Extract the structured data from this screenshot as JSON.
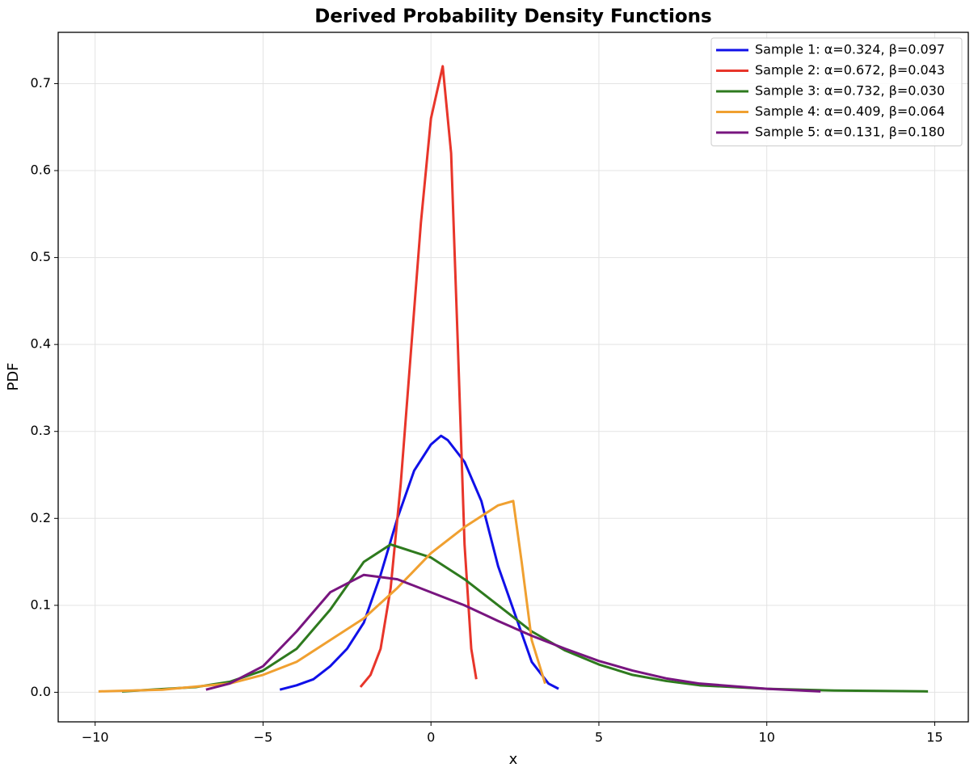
{
  "chart_data": {
    "type": "line",
    "title": "Derived Probability Density Functions",
    "x_label": "x",
    "y_label": "PDF",
    "xlim": [
      -11.1,
      16.0
    ],
    "ylim": [
      -0.034,
      0.759
    ],
    "xticks": [
      {
        "value": -10,
        "label": "−10"
      },
      {
        "value": -5,
        "label": "−5"
      },
      0,
      5,
      10,
      15
    ],
    "yticks": [
      {
        "value": 0,
        "label": "0.0"
      },
      0.1,
      0.2,
      0.3,
      0.4,
      0.5,
      0.6,
      0.7
    ],
    "grid": true,
    "legend": "upper right",
    "series": [
      {
        "name": "Sample 1: α=0.324, β=0.097",
        "color": "#1010e8",
        "x": [
          -4.5,
          -4,
          -3.5,
          -3,
          -2.5,
          -2,
          -1.5,
          -1,
          -0.5,
          0,
          0.3,
          0.5,
          1,
          1.5,
          2,
          2.5,
          3,
          3.5,
          3.8
        ],
        "values": [
          0.003,
          0.008,
          0.015,
          0.03,
          0.05,
          0.08,
          0.135,
          0.2,
          0.255,
          0.285,
          0.295,
          0.29,
          0.265,
          0.22,
          0.145,
          0.09,
          0.035,
          0.01,
          0.004
        ]
      },
      {
        "name": "Sample 2: α=0.672, β=0.043",
        "color": "#e8352a",
        "x": [
          -2.1,
          -1.8,
          -1.5,
          -1.2,
          -0.9,
          -0.6,
          -0.3,
          0,
          0.35,
          0.6,
          0.8,
          1.0,
          1.2,
          1.35
        ],
        "values": [
          0.006,
          0.02,
          0.05,
          0.12,
          0.24,
          0.39,
          0.54,
          0.66,
          0.72,
          0.62,
          0.4,
          0.17,
          0.05,
          0.015
        ]
      },
      {
        "name": "Sample 3: α=0.732, β=0.030",
        "color": "#2e7a1e",
        "x": [
          -9.2,
          -7,
          -6,
          -5,
          -4,
          -3,
          -2,
          -1.2,
          0,
          1,
          2,
          3,
          4,
          5,
          6,
          7,
          8,
          10,
          12,
          14.8
        ],
        "values": [
          0.001,
          0.006,
          0.012,
          0.025,
          0.05,
          0.095,
          0.15,
          0.17,
          0.155,
          0.13,
          0.1,
          0.07,
          0.048,
          0.032,
          0.02,
          0.013,
          0.008,
          0.004,
          0.002,
          0.001
        ]
      },
      {
        "name": "Sample 4: α=0.409, β=0.064",
        "color": "#f0a030",
        "x": [
          -9.9,
          -8,
          -6,
          -5,
          -4,
          -3,
          -2,
          -1,
          0,
          1,
          2,
          2.45,
          2.7,
          3,
          3.4
        ],
        "values": [
          0.001,
          0.003,
          0.01,
          0.02,
          0.035,
          0.06,
          0.085,
          0.12,
          0.16,
          0.19,
          0.215,
          0.22,
          0.15,
          0.06,
          0.01
        ]
      },
      {
        "name": "Sample 5: α=0.131, β=0.180",
        "color": "#78157f",
        "x": [
          -6.7,
          -6,
          -5,
          -4,
          -3,
          -2,
          -1,
          0,
          1,
          2,
          3,
          4,
          5,
          6,
          7,
          8,
          10,
          11.6
        ],
        "values": [
          0.003,
          0.01,
          0.03,
          0.07,
          0.115,
          0.135,
          0.13,
          0.115,
          0.1,
          0.082,
          0.065,
          0.05,
          0.036,
          0.025,
          0.016,
          0.01,
          0.004,
          0.001
        ]
      }
    ]
  }
}
